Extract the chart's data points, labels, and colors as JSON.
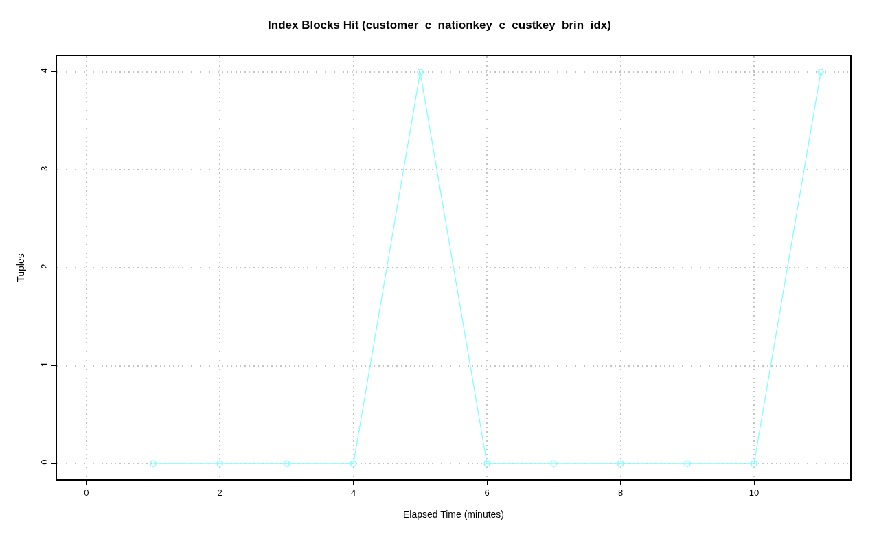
{
  "chart_data": {
    "type": "line",
    "title": "Index Blocks Hit (customer_c_nationkey_c_custkey_brin_idx)",
    "xlabel": "Elapsed Time (minutes)",
    "ylabel": "Tuples",
    "x": [
      1,
      2,
      3,
      4,
      5,
      6,
      7,
      8,
      9,
      10,
      11
    ],
    "series": [
      {
        "color": "#80ffff",
        "values": [
          0,
          0,
          0,
          0,
          4,
          0,
          0,
          0,
          0,
          0,
          4
        ]
      }
    ],
    "xlim": [
      -0.44,
      11.44
    ],
    "xticks": [
      0,
      2,
      4,
      6,
      8,
      10
    ],
    "ylim": [
      -0.16,
      4.16
    ],
    "yticks": [
      0,
      1,
      2,
      3,
      4
    ],
    "grid": true,
    "marker": "circle",
    "line_style": "solid"
  }
}
